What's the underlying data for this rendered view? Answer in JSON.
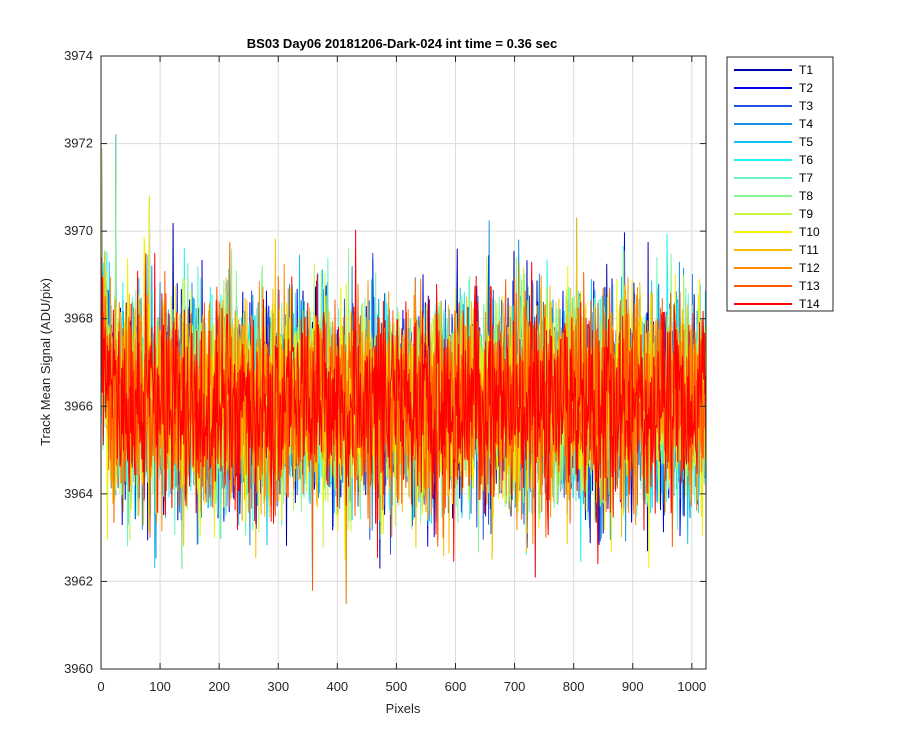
{
  "chart_data": {
    "type": "line",
    "title": "BS03 Day06 20181206-Dark-024 int time = 0.36 sec",
    "xlabel": "Pixels",
    "ylabel": "Track Mean Signal (ADU/pix)",
    "xlim": [
      0,
      1024
    ],
    "ylim": [
      3960,
      3974
    ],
    "xticks": [
      0,
      100,
      200,
      300,
      400,
      500,
      600,
      700,
      800,
      900,
      1000
    ],
    "yticks": [
      3960,
      3962,
      3964,
      3966,
      3968,
      3970,
      3972,
      3974
    ],
    "grid": true,
    "legend_position": "outside-top-right",
    "noise": {
      "mean": 3966.1,
      "std": 1.15
    },
    "extremes": [
      {
        "x": 25,
        "y": 3972.2
      },
      {
        "x": 1,
        "y": 3971.9
      },
      {
        "x": 82,
        "y": 3970.8
      },
      {
        "x": 805,
        "y": 3970.3
      },
      {
        "x": 415,
        "y": 3961.5
      },
      {
        "x": 358,
        "y": 3961.8
      },
      {
        "x": 735,
        "y": 3962.1
      },
      {
        "x": 137,
        "y": 3962.3
      }
    ],
    "series": [
      {
        "name": "T1",
        "color": "#0000aa"
      },
      {
        "name": "T2",
        "color": "#0000e6"
      },
      {
        "name": "T3",
        "color": "#1f52e0"
      },
      {
        "name": "T4",
        "color": "#1a8fe0"
      },
      {
        "name": "T5",
        "color": "#12c3f0"
      },
      {
        "name": "T6",
        "color": "#22f2ee"
      },
      {
        "name": "T7",
        "color": "#66f5c4"
      },
      {
        "name": "T8",
        "color": "#88f592"
      },
      {
        "name": "T9",
        "color": "#c2f545"
      },
      {
        "name": "T10",
        "color": "#f2f200"
      },
      {
        "name": "T11",
        "color": "#f8c000"
      },
      {
        "name": "T12",
        "color": "#ff8c00"
      },
      {
        "name": "T13",
        "color": "#ff5a00"
      },
      {
        "name": "T14",
        "color": "#ff0000"
      }
    ]
  }
}
